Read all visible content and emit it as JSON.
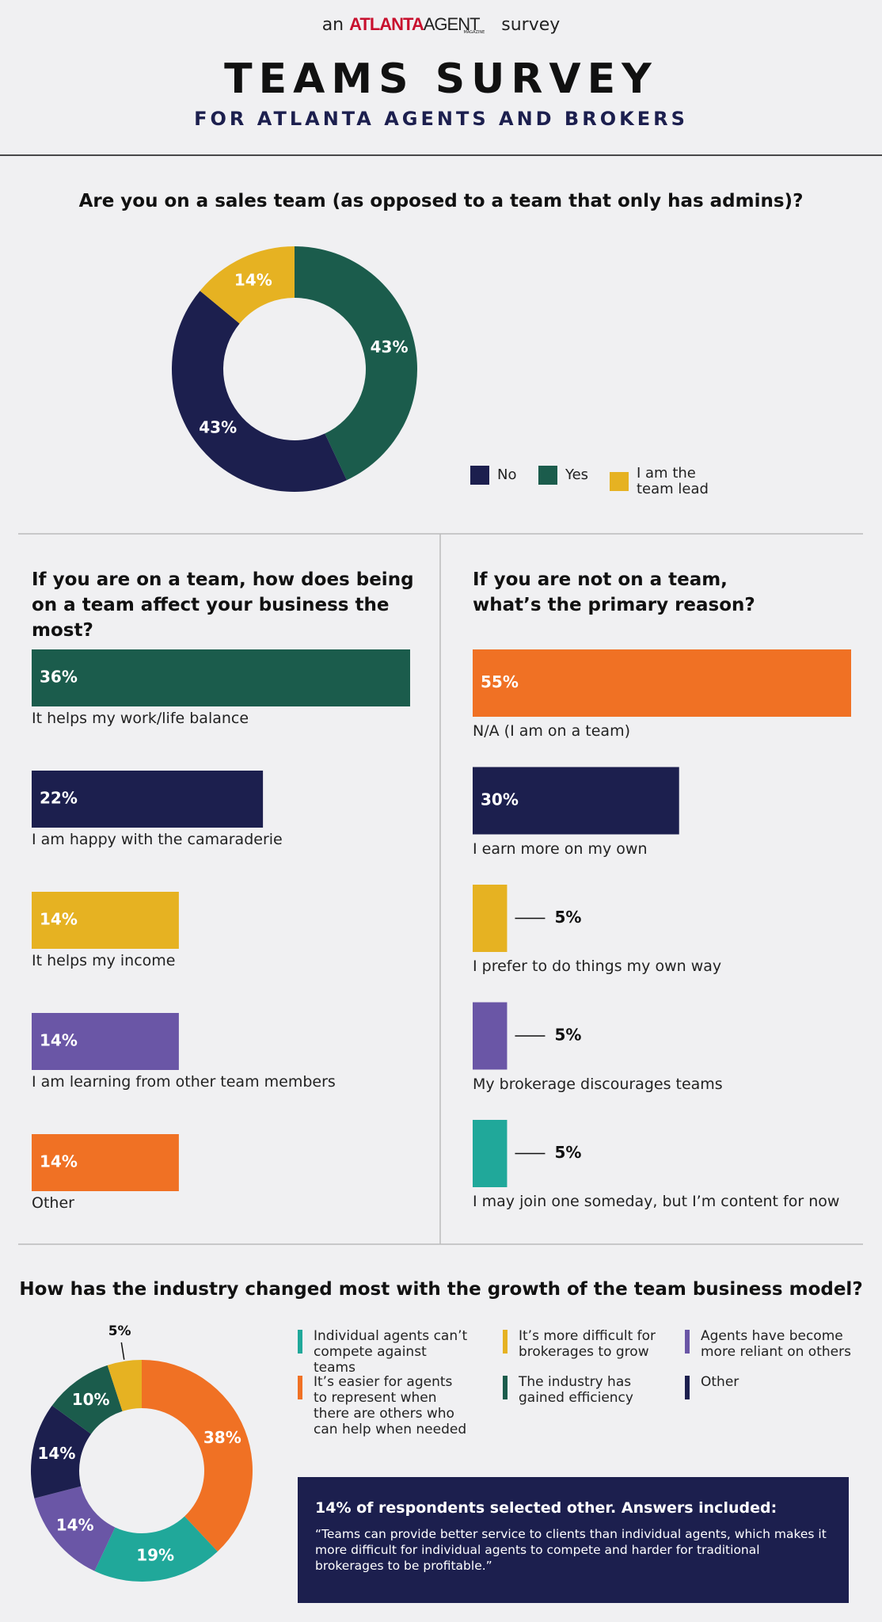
{
  "header": {
    "prefix": "an",
    "brand": "ATLANTA",
    "brand_suffix": "AGENT",
    "brand_tag": "MAGAZINE",
    "suffix": "survey",
    "title": "TEAMS SURVEY",
    "subtitle": "FOR ATLANTA AGENTS AND BROKERS"
  },
  "chart_data": [
    {
      "type": "donut",
      "title": "Are you on a sales team (as opposed to a team that only has admins)?",
      "categories": [
        "No",
        "Yes",
        "I am the team lead"
      ],
      "values": [
        43,
        43,
        14
      ],
      "value_labels": [
        "43%",
        "43%",
        "14%"
      ],
      "colors": [
        "#1c1f4e",
        "#1b5c4c",
        "#e6b222"
      ]
    },
    {
      "type": "bar",
      "title": "If you are on a team, how does being on a team affect your business the most?",
      "categories": [
        "It helps my work/life balance",
        "I am happy with the camaraderie",
        "It helps my income",
        "I am learning from other team members",
        "Other"
      ],
      "values": [
        36,
        22,
        14,
        14,
        14
      ],
      "value_labels": [
        "36%",
        "22%",
        "14%",
        "14%",
        "14%"
      ],
      "colors": [
        "#1b5c4c",
        "#1c1f4e",
        "#e6b222",
        "#6a56a6",
        "#f07124"
      ]
    },
    {
      "type": "bar",
      "title": "If you are not on a team, what’s the primary reason?",
      "categories": [
        "N/A (I am on a team)",
        "I earn more on my own",
        "I prefer to do things my own way",
        "My brokerage discourages teams",
        "I may join one someday, but I’m content for now"
      ],
      "values": [
        55,
        30,
        5,
        5,
        5
      ],
      "value_labels": [
        "55%",
        "30%",
        "5%",
        "5%",
        "5%"
      ],
      "colors": [
        "#f07124",
        "#1c1f4e",
        "#e6b222",
        "#6a56a6",
        "#20a89a"
      ]
    },
    {
      "type": "donut",
      "title": "How has the industry changed most with the growth of the team business model?",
      "categories": [
        "Individual agents can’t compete against teams",
        "It’s more difficult for brokerages to grow",
        "Agents have become more reliant on others",
        "It’s easier for agents to represent when there are others who can help when needed",
        "The industry has gained efficiency",
        "Other"
      ],
      "values": [
        19,
        5,
        14,
        38,
        10,
        14
      ],
      "value_labels": [
        "19%",
        "5%",
        "14%",
        "38%",
        "10%",
        "14%"
      ],
      "colors": [
        "#20a89a",
        "#e6b222",
        "#6a56a6",
        "#f07124",
        "#1b5c4c",
        "#1c1f4e"
      ],
      "note": {
        "title": "14% of respondents selected other. Answers included:",
        "text": "“Teams can provide better service to clients than individual agents, which makes it more difficult for individual agents to compete and harder for traditional brokerages to be profitable.”"
      }
    }
  ]
}
